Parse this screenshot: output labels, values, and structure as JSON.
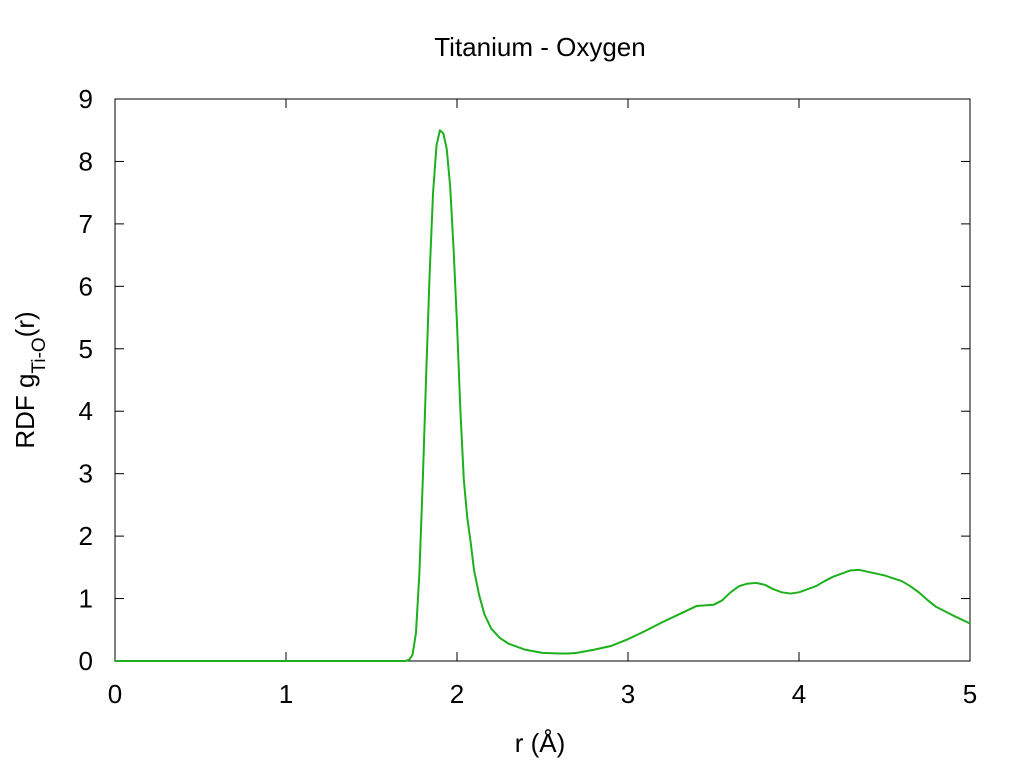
{
  "chart_data": {
    "type": "line",
    "title": "Titanium - Oxygen",
    "xlabel": "r (Å)",
    "ylabel": {
      "prefix": "RDF g",
      "subscript": "Ti-O",
      "suffix": "(r)"
    },
    "xlim": [
      0,
      5
    ],
    "ylim": [
      0,
      9
    ],
    "xticks": [
      "0",
      "1",
      "2",
      "3",
      "4",
      "5"
    ],
    "yticks": [
      "0",
      "1",
      "2",
      "3",
      "4",
      "5",
      "6",
      "7",
      "8",
      "9"
    ],
    "grid": false,
    "legend": "none",
    "series": [
      {
        "color": "#1cb01c",
        "x": [
          0,
          1.7,
          1.72,
          1.74,
          1.76,
          1.78,
          1.8,
          1.82,
          1.84,
          1.86,
          1.88,
          1.9,
          1.92,
          1.94,
          1.96,
          1.98,
          2.0,
          2.02,
          2.04,
          2.06,
          2.08,
          2.1,
          2.13,
          2.16,
          2.2,
          2.25,
          2.3,
          2.4,
          2.5,
          2.6,
          2.65,
          2.7,
          2.8,
          2.9,
          3.0,
          3.1,
          3.2,
          3.3,
          3.4,
          3.5,
          3.55,
          3.6,
          3.65,
          3.7,
          3.75,
          3.8,
          3.85,
          3.9,
          3.95,
          4.0,
          4.05,
          4.1,
          4.15,
          4.2,
          4.25,
          4.3,
          4.35,
          4.4,
          4.5,
          4.6,
          4.65,
          4.7,
          4.75,
          4.8,
          4.9,
          5.0
        ],
        "y": [
          0,
          0,
          0.02,
          0.1,
          0.45,
          1.4,
          2.9,
          4.6,
          6.2,
          7.5,
          8.25,
          8.5,
          8.45,
          8.2,
          7.6,
          6.6,
          5.4,
          4.0,
          2.9,
          2.3,
          1.9,
          1.45,
          1.05,
          0.75,
          0.52,
          0.37,
          0.28,
          0.18,
          0.13,
          0.12,
          0.12,
          0.13,
          0.18,
          0.24,
          0.35,
          0.48,
          0.62,
          0.75,
          0.88,
          0.9,
          0.97,
          1.1,
          1.2,
          1.24,
          1.25,
          1.22,
          1.15,
          1.1,
          1.08,
          1.1,
          1.15,
          1.2,
          1.28,
          1.35,
          1.4,
          1.45,
          1.46,
          1.43,
          1.37,
          1.28,
          1.2,
          1.1,
          0.98,
          0.87,
          0.73,
          0.6
        ]
      }
    ]
  }
}
